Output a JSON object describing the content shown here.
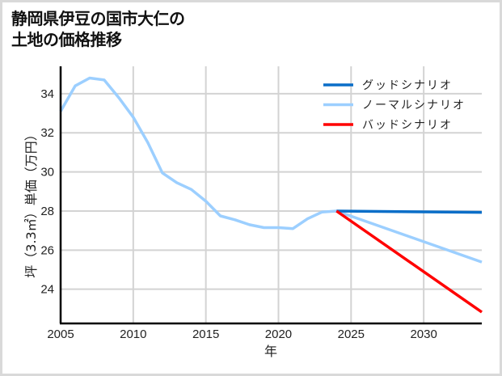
{
  "title_line1": "静岡県伊豆の国市大仁の",
  "title_line2": "土地の価格推移",
  "chart_data": {
    "type": "line",
    "title": "静岡県伊豆の国市大仁の土地の価格推移",
    "xlabel": "年",
    "ylabel": "坪（3.3㎡）単価（万円）",
    "xlim": [
      2005,
      2034
    ],
    "ylim": [
      22.25,
      35.4
    ],
    "xticks": [
      2005,
      2010,
      2015,
      2020,
      2025,
      2030
    ],
    "yticks": [
      24,
      26,
      28,
      30,
      32,
      34
    ],
    "grid": true,
    "legend_position": "upper right",
    "series": [
      {
        "name": "ノーマルシナリオ",
        "color": "#9ccfff",
        "role": "historical",
        "x": [
          2005,
          2006,
          2007,
          2008,
          2009,
          2010,
          2011,
          2012,
          2013,
          2014,
          2015,
          2016,
          2017,
          2018,
          2019,
          2020,
          2021,
          2022,
          2023,
          2024
        ],
        "values": [
          33.1,
          34.4,
          34.8,
          34.7,
          33.8,
          32.8,
          31.5,
          29.95,
          29.45,
          29.1,
          28.5,
          27.75,
          27.55,
          27.3,
          27.15,
          27.15,
          27.1,
          27.6,
          27.95,
          28.0
        ]
      },
      {
        "name": "グッドシナリオ",
        "color": "#0a6ec8",
        "x": [
          2024,
          2034
        ],
        "values": [
          28.0,
          27.93
        ]
      },
      {
        "name": "ノーマルシナリオ",
        "color": "#9ccfff",
        "x": [
          2024,
          2034
        ],
        "values": [
          28.0,
          25.39
        ]
      },
      {
        "name": "バッドシナリオ",
        "color": "#ff0000",
        "x": [
          2024,
          2034
        ],
        "values": [
          28.0,
          22.83
        ]
      }
    ],
    "legend": [
      {
        "label": "グッドシナリオ",
        "color": "#0a6ec8"
      },
      {
        "label": "ノーマルシナリオ",
        "color": "#9ccfff"
      },
      {
        "label": "バッドシナリオ",
        "color": "#ff0000"
      }
    ]
  }
}
